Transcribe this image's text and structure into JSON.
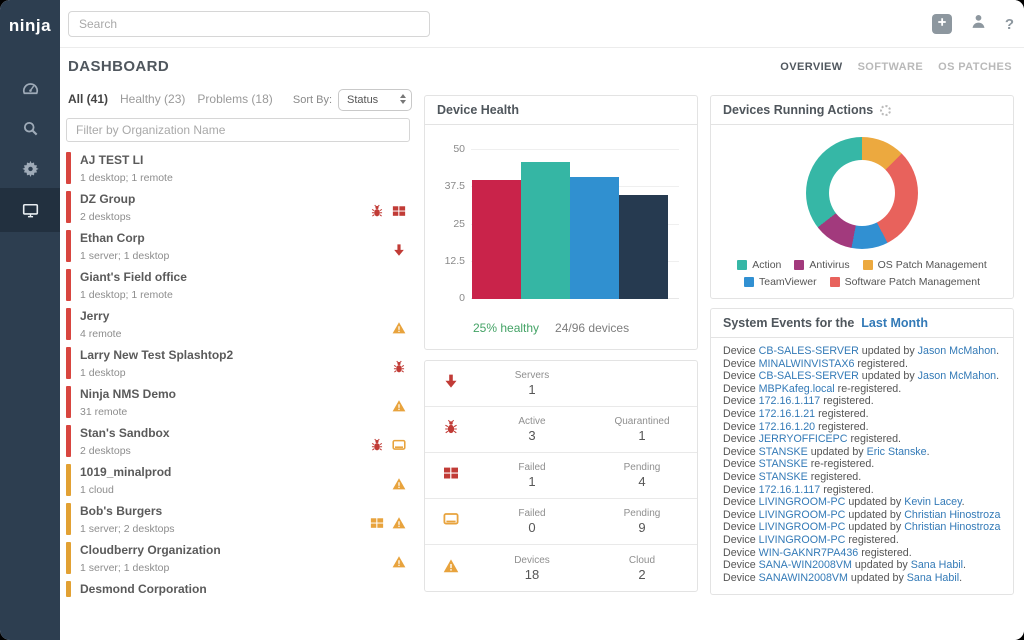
{
  "window": {
    "brand": "ninja"
  },
  "topbar": {
    "search_placeholder": "Search",
    "help_label": "?"
  },
  "header": {
    "title": "DASHBOARD",
    "tabs": [
      {
        "label": "OVERVIEW",
        "active": true
      },
      {
        "label": "SOFTWARE",
        "active": false
      },
      {
        "label": "OS PATCHES",
        "active": false
      }
    ]
  },
  "sidebar": {
    "items": [
      {
        "icon": "dashboard-gauge",
        "active": false
      },
      {
        "icon": "search",
        "active": false
      },
      {
        "icon": "gear",
        "active": false
      },
      {
        "icon": "monitor",
        "active": true
      }
    ]
  },
  "org_panel": {
    "filters": [
      {
        "label": "All (41)",
        "active": true
      },
      {
        "label": "Healthy (23)",
        "active": false
      },
      {
        "label": "Problems (18)",
        "active": false
      }
    ],
    "sort_label": "Sort By:",
    "sort_value": "Status",
    "filter_placeholder": "Filter by Organization Name",
    "organizations": [
      {
        "name": "AJ TEST LI",
        "detail": "1 desktop; 1 remote",
        "severity": "red",
        "icons": []
      },
      {
        "name": "DZ Group",
        "detail": "2 desktops",
        "severity": "red",
        "icons": [
          "bug-red",
          "windows-red"
        ]
      },
      {
        "name": "Ethan Corp",
        "detail": "1 server; 1 desktop",
        "severity": "red",
        "icons": [
          "arrow-down-red"
        ]
      },
      {
        "name": "Giant's Field office",
        "detail": "1 desktop; 1 remote",
        "severity": "red",
        "icons": []
      },
      {
        "name": "Jerry",
        "detail": "4 remote",
        "severity": "red",
        "icons": [
          "warning-orange"
        ]
      },
      {
        "name": "Larry New Test Splashtop2",
        "detail": "1 desktop",
        "severity": "red",
        "icons": [
          "bug-red"
        ]
      },
      {
        "name": "Ninja NMS Demo",
        "detail": "31 remote",
        "severity": "red",
        "icons": [
          "warning-orange"
        ]
      },
      {
        "name": "Stan's Sandbox",
        "detail": "2 desktops",
        "severity": "red",
        "icons": [
          "bug-red",
          "monitor-orange"
        ]
      },
      {
        "name": "1019_minalprod",
        "detail": "1 cloud",
        "severity": "orange",
        "icons": [
          "warning-orange"
        ]
      },
      {
        "name": "Bob's Burgers",
        "detail": "1 server; 2 desktops",
        "severity": "orange",
        "icons": [
          "windows-orange",
          "warning-orange"
        ]
      },
      {
        "name": "Cloudberry Organization",
        "detail": "1 server; 1 desktop",
        "severity": "orange",
        "icons": [
          "warning-orange"
        ]
      },
      {
        "name": "Desmond Corporation",
        "detail": "",
        "severity": "orange",
        "icons": []
      }
    ]
  },
  "chart_data": [
    {
      "type": "bar",
      "title": "Device Health",
      "categories": [
        "",
        "",
        "",
        ""
      ],
      "values": [
        40,
        46,
        41,
        35
      ],
      "colors": [
        "#c9234a",
        "#35b6a4",
        "#3090d0",
        "#263a50"
      ],
      "ylim": [
        0,
        50
      ],
      "yticks": [
        0,
        12.5,
        25,
        37.5,
        50
      ],
      "grid": true,
      "caption_healthy": "25% healthy",
      "caption_devices": "24/96 devices"
    },
    {
      "type": "donut",
      "title": "Devices Running Actions",
      "series": [
        {
          "name": "OS Patch Management",
          "value": 12.5,
          "color": "#eca93f"
        },
        {
          "name": "Software Patch Management",
          "value": 30,
          "color": "#e8625c"
        },
        {
          "name": "TeamViewer",
          "value": 10.5,
          "color": "#3190d2"
        },
        {
          "name": "Antivirus",
          "value": 11.5,
          "color": "#a23a7d"
        },
        {
          "name": "Action",
          "value": 35.5,
          "color": "#36b7a6"
        }
      ],
      "legend_order": [
        "Action",
        "Antivirus",
        "OS Patch Management",
        "TeamViewer",
        "Software Patch Management"
      ],
      "legend_position": "bottom",
      "note": "slice values estimated from arc angles; no numeric labels shown"
    }
  ],
  "stats": {
    "rows": [
      {
        "icon": "arrow-down-red",
        "cols": [
          {
            "label": "Servers",
            "value": "1"
          }
        ]
      },
      {
        "icon": "bug-red",
        "cols": [
          {
            "label": "Active",
            "value": "3"
          },
          {
            "label": "Quarantined",
            "value": "1"
          }
        ]
      },
      {
        "icon": "windows-red",
        "cols": [
          {
            "label": "Failed",
            "value": "1"
          },
          {
            "label": "Pending",
            "value": "4"
          }
        ]
      },
      {
        "icon": "monitor-orange",
        "cols": [
          {
            "label": "Failed",
            "value": "0"
          },
          {
            "label": "Pending",
            "value": "9"
          }
        ]
      },
      {
        "icon": "warning-orange",
        "cols": [
          {
            "label": "Devices",
            "value": "18"
          },
          {
            "label": "Cloud",
            "value": "2"
          }
        ]
      }
    ]
  },
  "events_panel": {
    "title_prefix": "System Events for the",
    "title_link": "Last Month",
    "events": [
      {
        "device": "CB-SALES-SERVER",
        "action": "updated by",
        "by": "Jason McMahon"
      },
      {
        "device": "MINALWINVISTAX6",
        "action": "registered."
      },
      {
        "device": "CB-SALES-SERVER",
        "action": "updated by",
        "by": "Jason McMahon"
      },
      {
        "device": "MBPKafeg.local",
        "action": "re-registered."
      },
      {
        "device": "172.16.1.117",
        "action": "registered."
      },
      {
        "device": "172.16.1.21",
        "action": "registered."
      },
      {
        "device": "172.16.1.20",
        "action": "registered."
      },
      {
        "device": "JERRYOFFICEPC",
        "action": "registered."
      },
      {
        "device": "STANSKE",
        "action": "updated by",
        "by": "Eric Stanske"
      },
      {
        "device": "STANSKE",
        "action": "re-registered."
      },
      {
        "device": "STANSKE",
        "action": "registered."
      },
      {
        "device": "172.16.1.117",
        "action": "registered."
      },
      {
        "device": "LIVINGROOM-PC",
        "action": "updated by",
        "by": "Kevin Lacey"
      },
      {
        "device": "LIVINGROOM-PC",
        "action": "updated by",
        "by": "Christian Hinostroza"
      },
      {
        "device": "LIVINGROOM-PC",
        "action": "updated by",
        "by": "Christian Hinostroza"
      },
      {
        "device": "LIVINGROOM-PC",
        "action": "registered."
      },
      {
        "device": "WIN-GAKNR7PA436",
        "action": "registered."
      },
      {
        "device": "SANA-WIN2008VM",
        "action": "updated by",
        "by": "Sana Habil"
      },
      {
        "device": "SANAWIN2008VM",
        "action": "updated by",
        "by": "Sana Habil"
      }
    ]
  },
  "colors": {
    "sidebar_bg": "#2d3e50",
    "sidebar_active_bg": "#22303f",
    "severity_red": "#d8453f",
    "severity_orange": "#e2a133",
    "icon_red": "#c13b36",
    "icon_orange": "#e8a33d",
    "link": "#337ab7",
    "healthy_green": "#44a366"
  }
}
